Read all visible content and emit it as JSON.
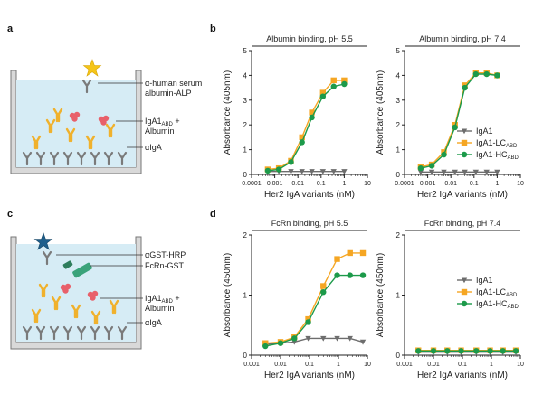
{
  "panels": {
    "a": {
      "letter": "a",
      "labels": {
        "detector_line1": "α-human serum",
        "detector_line2": "albumin-ALP",
        "complex_main": "IgA1",
        "complex_sub": "ABD",
        "complex_plus": " +",
        "complex_line2": "Albumin",
        "capture": "αIgA"
      }
    },
    "b": {
      "letter": "b"
    },
    "c": {
      "letter": "c",
      "labels": {
        "detector": "αGST-HRP",
        "receptor": "FcRn-GST",
        "complex_main": "IgA1",
        "complex_sub": "ABD",
        "complex_plus": " +",
        "complex_line2": "Albumin",
        "capture": "αIgA"
      }
    },
    "d": {
      "letter": "d"
    }
  },
  "colors": {
    "iga1": "#6d6d6d",
    "lc": "#f5a623",
    "hc": "#1c9a4a",
    "antibody": "#7a7a7a",
    "iga_arm": "#f0b12c",
    "albumin": "#e8606a",
    "star_alp": "#f5c518",
    "star_hrp": "#1e5f8c",
    "fcrn": "#3aa37a",
    "well_fill": "#d6ecf5",
    "well_edge": "#777777"
  },
  "chart_data": [
    {
      "id": "b-left",
      "type": "line",
      "title": "Albumin binding, pH 5.5",
      "xlabel": "Her2 IgA variants (nM)",
      "ylabel": "Absorbance (405nm)",
      "xscale": "log",
      "xlim": [
        0.0001,
        10
      ],
      "xticks": [
        "0.0001",
        "0.001",
        "0.01",
        "0.1",
        "1",
        "10"
      ],
      "ylim": [
        0,
        5
      ],
      "yticks": [
        "0",
        "1",
        "2",
        "3",
        "4",
        "5"
      ],
      "x": [
        0.0005,
        0.0015,
        0.005,
        0.015,
        0.04,
        0.12,
        0.35,
        1
      ],
      "series": [
        {
          "name": "IgA1",
          "key": "iga1",
          "marker": "triangle",
          "values": [
            0.12,
            0.12,
            0.12,
            0.12,
            0.12,
            0.12,
            0.12,
            0.12
          ]
        },
        {
          "name": "IgA1-LC",
          "key": "lc",
          "marker": "square",
          "values": [
            0.2,
            0.25,
            0.55,
            1.5,
            2.5,
            3.3,
            3.8,
            3.8
          ]
        },
        {
          "name": "IgA1-HC",
          "key": "hc",
          "marker": "circle",
          "values": [
            0.15,
            0.2,
            0.5,
            1.3,
            2.3,
            3.15,
            3.55,
            3.65
          ]
        }
      ]
    },
    {
      "id": "b-right",
      "type": "line",
      "title": "Albumin binding, pH 7.4",
      "xlabel": "Her2 IgA variants (nM)",
      "ylabel": "Absorbance (405nm)",
      "xscale": "log",
      "xlim": [
        0.0001,
        10
      ],
      "xticks": [
        "0.0001",
        "0.001",
        "0.01",
        "0.1",
        "1",
        "10"
      ],
      "ylim": [
        0,
        5
      ],
      "yticks": [
        "0",
        "1",
        "2",
        "3",
        "4",
        "5"
      ],
      "x": [
        0.0005,
        0.0015,
        0.005,
        0.015,
        0.04,
        0.12,
        0.35,
        1
      ],
      "legend": {
        "placement": "bottom-right",
        "entries": [
          {
            "key": "iga1",
            "marker": "triangle",
            "main": "IgA1",
            "sub": ""
          },
          {
            "key": "lc",
            "marker": "square",
            "main": "IgA1-LC",
            "sub": "ABD"
          },
          {
            "key": "hc",
            "marker": "circle",
            "main": "IgA1-HC",
            "sub": "ABD"
          }
        ]
      },
      "series": [
        {
          "name": "IgA1",
          "key": "iga1",
          "marker": "triangle",
          "values": [
            0.1,
            0.1,
            0.1,
            0.1,
            0.1,
            0.1,
            0.1,
            0.1
          ]
        },
        {
          "name": "IgA1-LC",
          "key": "lc",
          "marker": "square",
          "values": [
            0.3,
            0.4,
            0.9,
            2.0,
            3.6,
            4.1,
            4.1,
            4.0
          ]
        },
        {
          "name": "IgA1-HC",
          "key": "hc",
          "marker": "circle",
          "values": [
            0.25,
            0.35,
            0.8,
            1.9,
            3.5,
            4.05,
            4.05,
            4.0
          ]
        }
      ]
    },
    {
      "id": "d-left",
      "type": "line",
      "title": "FcRn binding, pH 5.5",
      "xlabel": "Her2 IgA variants (nM)",
      "ylabel": "Absorbance (450nm)",
      "xscale": "log",
      "xlim": [
        0.001,
        10
      ],
      "xticks": [
        "0.001",
        "0.01",
        "0.1",
        "1",
        "10"
      ],
      "ylim": [
        0,
        2
      ],
      "yticks": [
        "0",
        "1",
        "2"
      ],
      "x": [
        0.003,
        0.01,
        0.03,
        0.09,
        0.3,
        0.9,
        2.5,
        7
      ],
      "series": [
        {
          "name": "IgA1",
          "key": "iga1",
          "marker": "triangle",
          "values": [
            0.18,
            0.2,
            0.22,
            0.28,
            0.28,
            0.28,
            0.28,
            0.22
          ]
        },
        {
          "name": "IgA1-LC",
          "key": "lc",
          "marker": "square",
          "values": [
            0.2,
            0.22,
            0.3,
            0.6,
            1.15,
            1.6,
            1.7,
            1.7
          ]
        },
        {
          "name": "IgA1-HC",
          "key": "hc",
          "marker": "circle",
          "values": [
            0.15,
            0.2,
            0.28,
            0.55,
            1.05,
            1.33,
            1.33,
            1.33
          ]
        }
      ]
    },
    {
      "id": "d-right",
      "type": "line",
      "title": "FcRn binding, pH 7.4",
      "xlabel": "Her2 IgA variants (nM)",
      "ylabel": "Absorbance (450nm)",
      "xscale": "log",
      "xlim": [
        0.001,
        10
      ],
      "xticks": [
        "0.001",
        "0.01",
        "0.1",
        "1",
        "10"
      ],
      "ylim": [
        0,
        2
      ],
      "yticks": [
        "0",
        "1",
        "2"
      ],
      "x": [
        0.003,
        0.01,
        0.03,
        0.09,
        0.3,
        0.9,
        2.5,
        7
      ],
      "legend": {
        "placement": "right",
        "entries": [
          {
            "key": "iga1",
            "marker": "triangle",
            "main": "IgA1",
            "sub": ""
          },
          {
            "key": "lc",
            "marker": "square",
            "main": "IgA1-LC",
            "sub": "ABD"
          },
          {
            "key": "hc",
            "marker": "circle",
            "main": "IgA1-HC",
            "sub": "ABD"
          }
        ]
      },
      "series": [
        {
          "name": "IgA1",
          "key": "iga1",
          "marker": "triangle",
          "values": [
            0.05,
            0.05,
            0.05,
            0.05,
            0.05,
            0.05,
            0.05,
            0.05
          ]
        },
        {
          "name": "IgA1-LC",
          "key": "lc",
          "marker": "square",
          "values": [
            0.08,
            0.08,
            0.08,
            0.08,
            0.08,
            0.08,
            0.08,
            0.08
          ]
        },
        {
          "name": "IgA1-HC",
          "key": "hc",
          "marker": "circle",
          "values": [
            0.07,
            0.07,
            0.07,
            0.07,
            0.07,
            0.07,
            0.07,
            0.07
          ]
        }
      ]
    }
  ]
}
